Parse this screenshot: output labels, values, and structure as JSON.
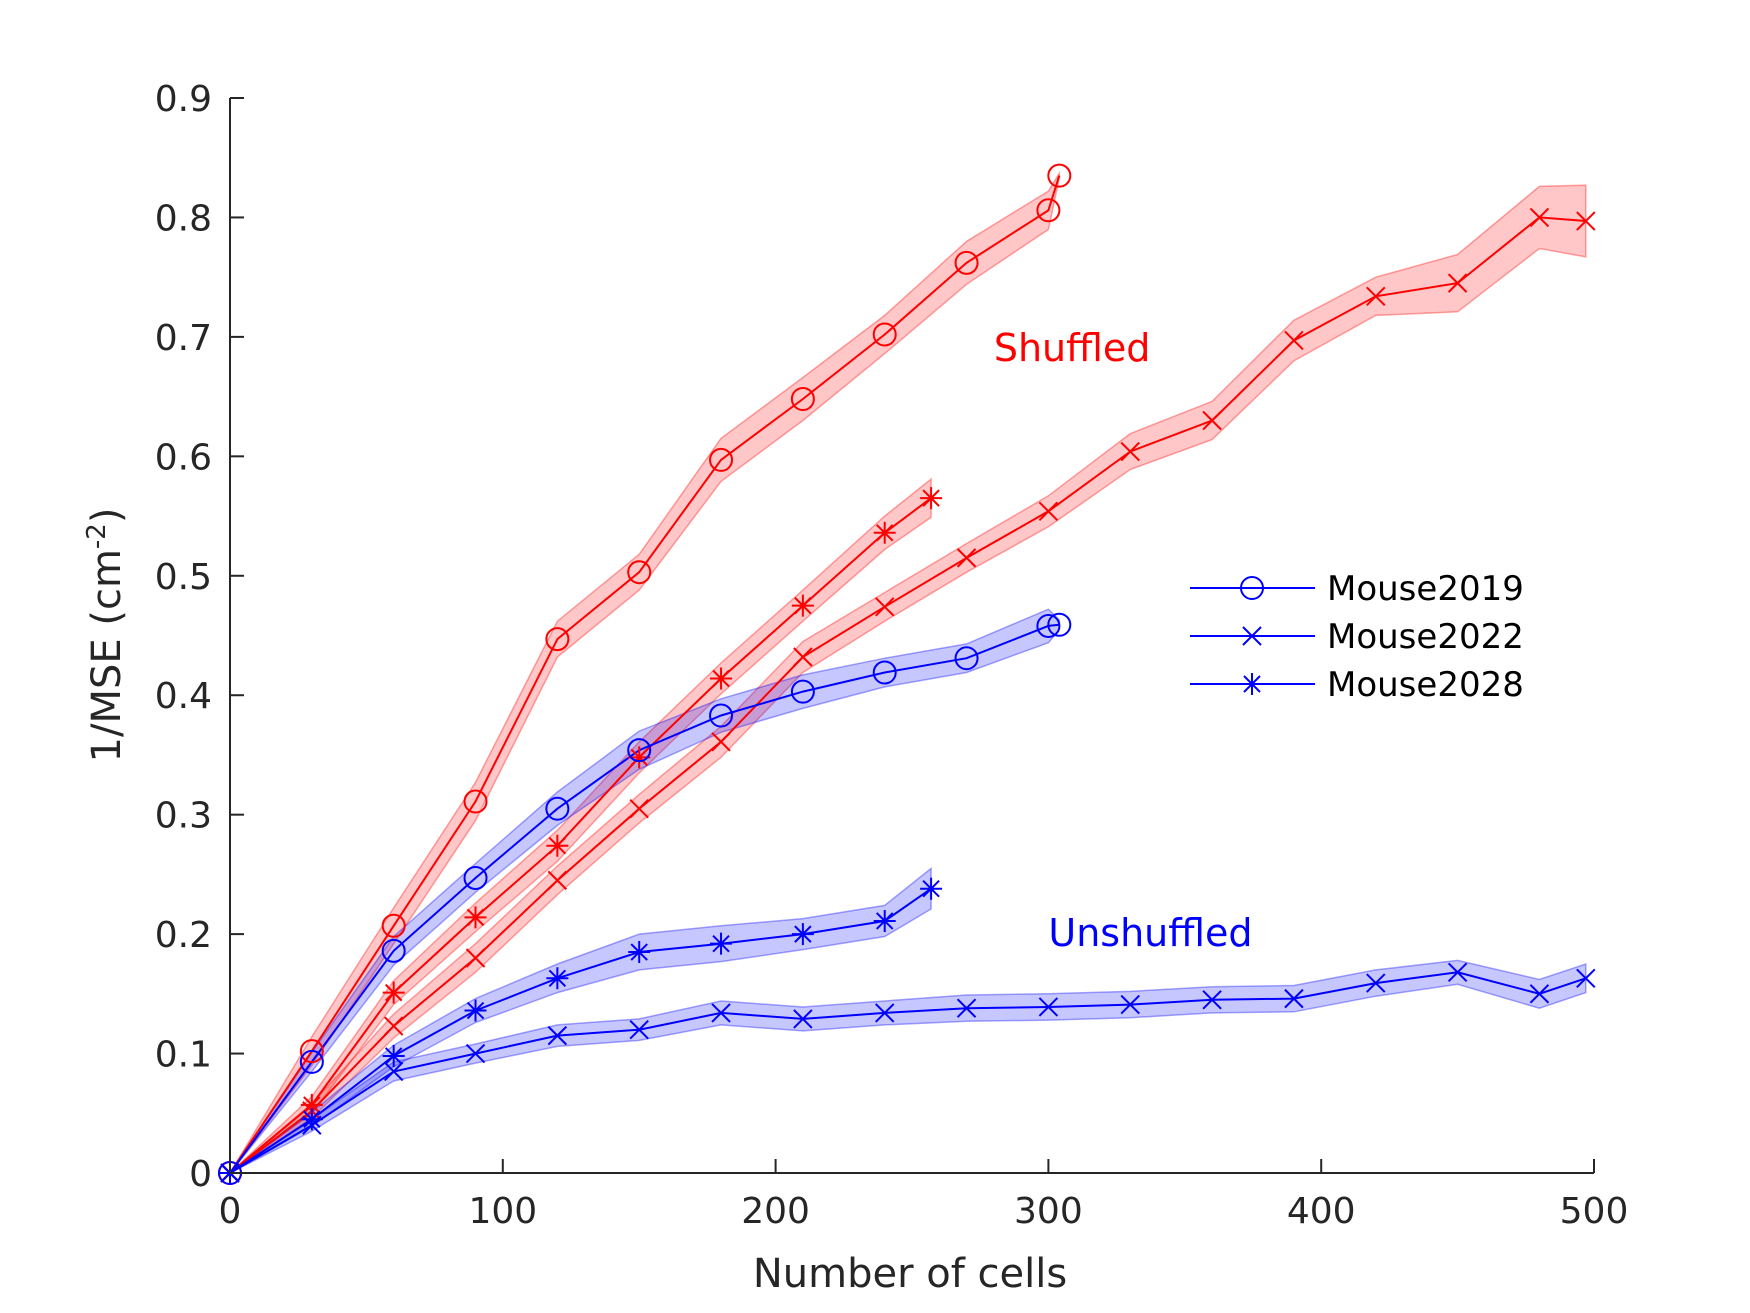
{
  "chart_data": {
    "type": "line",
    "xlabel": "Number of cells",
    "ylabel": "1/MSE (cm",
    "ylabel_sup": "-2",
    "ylabel_end": ")",
    "xlim": [
      0,
      500
    ],
    "ylim": [
      0,
      0.9
    ],
    "xticks": [
      0,
      100,
      200,
      300,
      400,
      500
    ],
    "yticks": [
      0,
      0.1,
      0.2,
      0.3,
      0.4,
      0.5,
      0.6,
      0.7,
      0.8,
      0.9
    ],
    "xtick_labels": [
      "0",
      "100",
      "200",
      "300",
      "400",
      "500"
    ],
    "ytick_labels": [
      "0",
      "0.1",
      "0.2",
      "0.3",
      "0.4",
      "0.5",
      "0.6",
      "0.7",
      "0.8",
      "0.9"
    ],
    "grid": false,
    "legend_position": "right",
    "legend": [
      {
        "label": "Mouse2019",
        "marker": "circle"
      },
      {
        "label": "Mouse2022",
        "marker": "x"
      },
      {
        "label": "Mouse2028",
        "marker": "star"
      }
    ],
    "annotations": [
      {
        "text": "Shuffled",
        "color": "#ff0000",
        "x": 280,
        "y": 0.68
      },
      {
        "text": "Unshuffled",
        "color": "#0000ff",
        "x": 300,
        "y": 0.19
      }
    ],
    "colors": {
      "shuffled": "#ff0000",
      "unshuffled": "#0000ff",
      "legend": "#0000ff"
    },
    "series": [
      {
        "group": "shuffled",
        "mouse": "Mouse2019",
        "marker": "circle",
        "color": "#ff0000",
        "x": [
          0,
          30,
          60,
          90,
          120,
          150,
          180,
          210,
          240,
          270,
          300,
          304
        ],
        "y": [
          0,
          0.102,
          0.207,
          0.311,
          0.447,
          0.503,
          0.597,
          0.648,
          0.702,
          0.762,
          0.806,
          0.835
        ],
        "band": [
          0,
          0.012,
          0.015,
          0.016,
          0.015,
          0.015,
          0.018,
          0.018,
          0.016,
          0.018,
          0.016,
          0.002
        ]
      },
      {
        "group": "shuffled",
        "mouse": "Mouse2022",
        "marker": "x",
        "color": "#ff0000",
        "x": [
          0,
          30,
          60,
          90,
          120,
          150,
          180,
          210,
          240,
          270,
          300,
          330,
          360,
          390,
          420,
          450,
          480,
          497
        ],
        "y": [
          0,
          0.052,
          0.123,
          0.18,
          0.245,
          0.305,
          0.361,
          0.432,
          0.474,
          0.515,
          0.554,
          0.604,
          0.63,
          0.697,
          0.734,
          0.745,
          0.8,
          0.797
        ],
        "band": [
          0,
          0.006,
          0.01,
          0.012,
          0.012,
          0.012,
          0.013,
          0.013,
          0.012,
          0.012,
          0.013,
          0.015,
          0.016,
          0.017,
          0.016,
          0.024,
          0.026,
          0.03
        ]
      },
      {
        "group": "shuffled",
        "mouse": "Mouse2028",
        "marker": "star",
        "color": "#ff0000",
        "x": [
          0,
          30,
          60,
          90,
          120,
          150,
          180,
          210,
          240,
          257
        ],
        "y": [
          0,
          0.057,
          0.151,
          0.214,
          0.274,
          0.348,
          0.414,
          0.475,
          0.536,
          0.565
        ],
        "band": [
          0,
          0.007,
          0.01,
          0.012,
          0.013,
          0.013,
          0.013,
          0.013,
          0.014,
          0.016
        ]
      },
      {
        "group": "unshuffled",
        "mouse": "Mouse2019",
        "marker": "circle",
        "color": "#0000ff",
        "x": [
          0,
          30,
          60,
          90,
          120,
          150,
          180,
          210,
          240,
          270,
          300,
          304
        ],
        "y": [
          0,
          0.093,
          0.186,
          0.247,
          0.305,
          0.354,
          0.383,
          0.403,
          0.419,
          0.431,
          0.458,
          0.459
        ],
        "band": [
          0,
          0.008,
          0.012,
          0.012,
          0.014,
          0.016,
          0.014,
          0.014,
          0.012,
          0.012,
          0.014,
          0.004
        ]
      },
      {
        "group": "unshuffled",
        "mouse": "Mouse2022",
        "marker": "x",
        "color": "#0000ff",
        "x": [
          0,
          30,
          60,
          90,
          120,
          150,
          180,
          210,
          240,
          270,
          300,
          330,
          360,
          390,
          420,
          450,
          480,
          497
        ],
        "y": [
          0,
          0.04,
          0.085,
          0.1,
          0.115,
          0.12,
          0.134,
          0.129,
          0.134,
          0.138,
          0.139,
          0.141,
          0.145,
          0.146,
          0.159,
          0.168,
          0.15,
          0.163
        ],
        "band": [
          0,
          0.005,
          0.008,
          0.008,
          0.009,
          0.009,
          0.01,
          0.01,
          0.01,
          0.011,
          0.011,
          0.011,
          0.011,
          0.011,
          0.011,
          0.01,
          0.012,
          0.012
        ]
      },
      {
        "group": "unshuffled",
        "mouse": "Mouse2028",
        "marker": "star",
        "color": "#0000ff",
        "x": [
          0,
          30,
          60,
          90,
          120,
          150,
          180,
          210,
          240,
          257
        ],
        "y": [
          0,
          0.045,
          0.098,
          0.136,
          0.163,
          0.185,
          0.192,
          0.2,
          0.211,
          0.238
        ],
        "band": [
          0,
          0.006,
          0.009,
          0.01,
          0.012,
          0.015,
          0.015,
          0.013,
          0.013,
          0.017
        ]
      }
    ]
  }
}
